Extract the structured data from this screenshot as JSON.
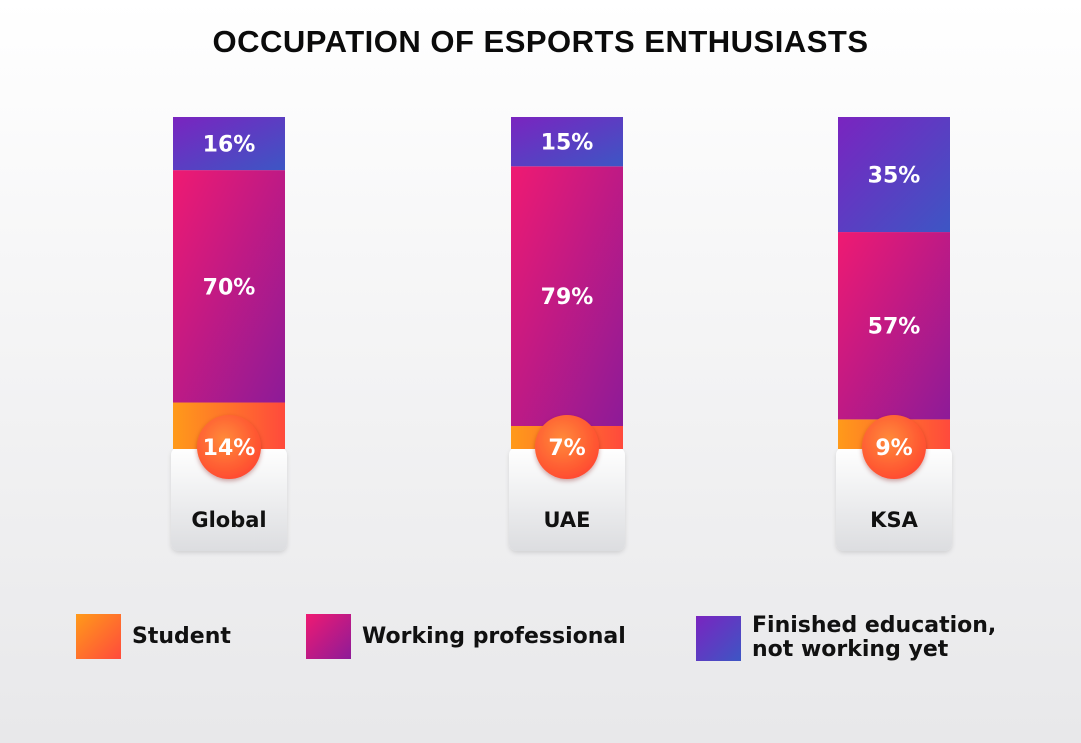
{
  "chart_data": {
    "type": "bar",
    "stacked": true,
    "title": "OCCUPATION OF ESPORTS ENTHUSIASTS",
    "categories": [
      "Global",
      "UAE",
      "KSA"
    ],
    "series": [
      {
        "name": "Student",
        "values": [
          14,
          7,
          9
        ],
        "color_from": "#ff9a1a",
        "color_to": "#ff4a3c"
      },
      {
        "name": "Working professional",
        "values": [
          70,
          79,
          57
        ],
        "color_from": "#ef1a72",
        "color_to": "#8d1b98"
      },
      {
        "name": "Finished education,\nnot working yet",
        "values": [
          16,
          15,
          35
        ],
        "color_from": "#7a24c0",
        "color_to": "#3d56c4"
      }
    ],
    "data_labels": [
      {
        "student": "14%",
        "working": "70%",
        "finished": "16%"
      },
      {
        "student": "7%",
        "working": "79%",
        "finished": "15%"
      },
      {
        "student": "9%",
        "working": "57%",
        "finished": "35%"
      }
    ],
    "legend": "bottom",
    "grid": false
  }
}
